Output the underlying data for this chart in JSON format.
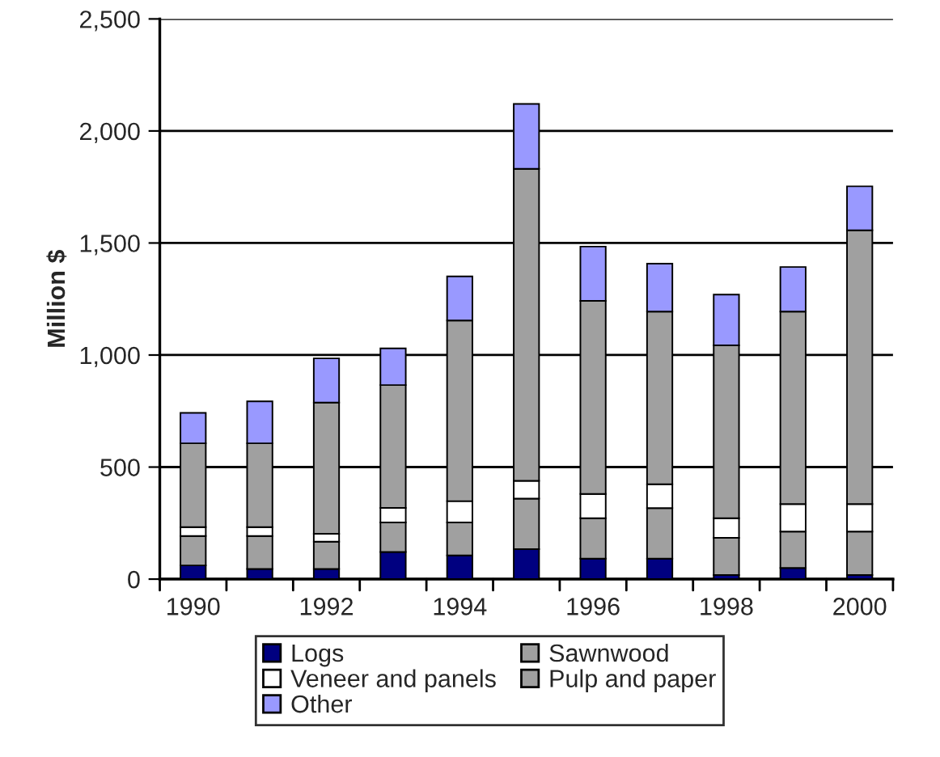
{
  "chart_data": {
    "type": "bar",
    "stacked": true,
    "ylabel": "Million $",
    "categories": [
      "1990",
      null,
      "1992",
      null,
      "1994",
      null,
      "1996",
      null,
      "1998",
      null,
      "2000"
    ],
    "series": [
      {
        "name": "Logs",
        "color": "#000080",
        "values": [
          61,
          45,
          45,
          121,
          106,
          134,
          91,
          91,
          18,
          50,
          18
        ]
      },
      {
        "name": "Sawnwood",
        "color": "#a0a0a0",
        "values": [
          131,
          147,
          122,
          132,
          147,
          225,
          181,
          226,
          166,
          162,
          194
        ]
      },
      {
        "name": "Veneer and panels",
        "color": "#ffffff",
        "values": [
          40,
          40,
          35,
          65,
          95,
          80,
          108,
          106,
          88,
          123,
          123
        ]
      },
      {
        "name": "Pulp and paper",
        "color": "#a0a0a0",
        "values": [
          374,
          374,
          586,
          548,
          806,
          1392,
          862,
          771,
          771,
          859,
          1222
        ]
      },
      {
        "name": "Other",
        "color": "#9999ff",
        "values": [
          136,
          187,
          197,
          164,
          197,
          290,
          242,
          214,
          227,
          199,
          196
        ]
      }
    ],
    "ylim": [
      0,
      2500
    ],
    "yticks": [
      0,
      500,
      {
        "value": 1000,
        "label": "1,000"
      },
      {
        "value": 1500,
        "label": "1,500"
      },
      {
        "value": 2000,
        "label": "2,000"
      },
      {
        "value": 2500,
        "label": "2,500"
      }
    ],
    "grid": "y",
    "legend": "bottom"
  }
}
